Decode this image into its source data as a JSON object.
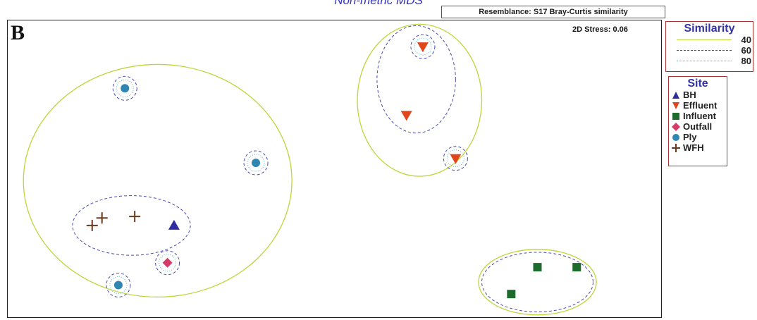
{
  "title": "Non-metric MDS",
  "resemblance": "Resemblance: S17 Bray-Curtis similarity",
  "panel_letter": "B",
  "stress": "2D Stress: 0.06",
  "similarity_legend": {
    "title": "Similarity",
    "levels": [
      {
        "value": "40",
        "color": "#bdd63a",
        "style": "solid"
      },
      {
        "value": "60",
        "color": "#4a4ab0",
        "style": "dashed"
      },
      {
        "value": "80",
        "color": "#55b8b8",
        "style": "dotted"
      }
    ]
  },
  "site_legend": {
    "title": "Site",
    "entries": [
      {
        "name": "BH",
        "symbol": "triangle-up",
        "color": "#2e2e9e"
      },
      {
        "name": "Effluent",
        "symbol": "triangle-down",
        "color": "#e0461c"
      },
      {
        "name": "Influent",
        "symbol": "square",
        "color": "#1e6b2e"
      },
      {
        "name": "Outfall",
        "symbol": "diamond",
        "color": "#d63a6a"
      },
      {
        "name": "Ply",
        "symbol": "circle",
        "color": "#2f86b0"
      },
      {
        "name": "WFH",
        "symbol": "plus",
        "color": "#6b3a1e"
      }
    ]
  },
  "chart_data": {
    "type": "scatter",
    "note_units": "MDS ordination coordinates (dimensionless)",
    "points": [
      {
        "site": "Ply",
        "x": 0.18,
        "y": 0.77
      },
      {
        "site": "Ply",
        "x": 0.38,
        "y": 0.52
      },
      {
        "site": "Ply",
        "x": 0.17,
        "y": 0.11
      },
      {
        "site": "Effluent",
        "x": 0.635,
        "y": 0.91
      },
      {
        "site": "Effluent",
        "x": 0.61,
        "y": 0.68
      },
      {
        "site": "Effluent",
        "x": 0.685,
        "y": 0.535
      },
      {
        "site": "WFH",
        "x": 0.145,
        "y": 0.335
      },
      {
        "site": "WFH",
        "x": 0.13,
        "y": 0.31
      },
      {
        "site": "WFH",
        "x": 0.195,
        "y": 0.34
      },
      {
        "site": "BH",
        "x": 0.255,
        "y": 0.31
      },
      {
        "site": "Outfall",
        "x": 0.245,
        "y": 0.185
      },
      {
        "site": "Influent",
        "x": 0.81,
        "y": 0.17
      },
      {
        "site": "Influent",
        "x": 0.87,
        "y": 0.17
      },
      {
        "site": "Influent",
        "x": 0.77,
        "y": 0.08
      }
    ],
    "clusters_40": [
      {
        "cx": 0.23,
        "cy": 0.46,
        "rx": 0.205,
        "ry": 0.39
      },
      {
        "cx": 0.63,
        "cy": 0.73,
        "rx": 0.095,
        "ry": 0.255
      },
      {
        "cx": 0.81,
        "cy": 0.12,
        "rx": 0.09,
        "ry": 0.11
      }
    ],
    "clusters_60": [
      {
        "cx": 0.19,
        "cy": 0.31,
        "rx": 0.09,
        "ry": 0.1
      },
      {
        "cx": 0.625,
        "cy": 0.8,
        "rx": 0.06,
        "ry": 0.18
      },
      {
        "cx": 0.81,
        "cy": 0.12,
        "rx": 0.085,
        "ry": 0.1
      }
    ],
    "singleton_rings": [
      {
        "cx": 0.18,
        "cy": 0.77
      },
      {
        "cx": 0.38,
        "cy": 0.52
      },
      {
        "cx": 0.17,
        "cy": 0.11
      },
      {
        "cx": 0.635,
        "cy": 0.91
      },
      {
        "cx": 0.685,
        "cy": 0.535
      },
      {
        "cx": 0.245,
        "cy": 0.185
      }
    ]
  }
}
